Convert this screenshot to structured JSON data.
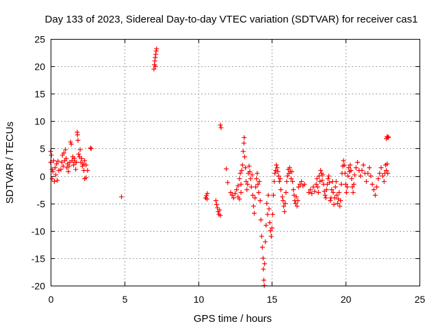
{
  "chart_data": {
    "type": "scatter",
    "title": "Day 133 of 2023, Sidereal Day-to-day VTEC variation (SDTVAR) for receiver cas1",
    "xlabel": "GPS time / hours",
    "ylabel": "SDTVAR / TECUs",
    "xlim": [
      0,
      25
    ],
    "ylim": [
      -20,
      25
    ],
    "xticks": [
      0,
      5,
      10,
      15,
      20,
      25
    ],
    "yticks": [
      -20,
      -15,
      -10,
      -5,
      0,
      5,
      10,
      15,
      20,
      25
    ],
    "xtick_labels": [
      "0",
      "5",
      "10",
      "15",
      "20",
      "25"
    ],
    "ytick_labels": [
      "-20",
      "-15",
      "-10",
      "-5",
      "0",
      "5",
      "10",
      "15",
      "20",
      "25"
    ],
    "grid": true,
    "marker": "plus",
    "series": [
      {
        "name": "SDTVAR",
        "color": "#ff0000",
        "points": [
          [
            0.0,
            4.5
          ],
          [
            0.0,
            2.5
          ],
          [
            0.05,
            3.8
          ],
          [
            0.1,
            1.2
          ],
          [
            0.1,
            -0.5
          ],
          [
            0.15,
            0.8
          ],
          [
            0.2,
            2.8
          ],
          [
            0.25,
            -1.0
          ],
          [
            0.3,
            1.5
          ],
          [
            0.35,
            0.2
          ],
          [
            0.4,
            2.2
          ],
          [
            0.45,
            -0.8
          ],
          [
            0.5,
            2.7
          ],
          [
            0.55,
            1.0
          ],
          [
            0.7,
            1.2
          ],
          [
            0.75,
            2.5
          ],
          [
            0.8,
            3.8
          ],
          [
            0.85,
            1.8
          ],
          [
            0.9,
            4.2
          ],
          [
            0.95,
            2.8
          ],
          [
            1.0,
            4.8
          ],
          [
            1.05,
            3.2
          ],
          [
            1.1,
            1.5
          ],
          [
            1.15,
            2.2
          ],
          [
            1.2,
            0.8
          ],
          [
            1.25,
            1.8
          ],
          [
            1.3,
            2.5
          ],
          [
            1.35,
            6.2
          ],
          [
            1.4,
            5.8
          ],
          [
            1.45,
            2.8
          ],
          [
            1.5,
            3.5
          ],
          [
            1.55,
            2.0
          ],
          [
            1.6,
            3.2
          ],
          [
            1.65,
            2.5
          ],
          [
            1.7,
            1.2
          ],
          [
            1.75,
            2.5
          ],
          [
            1.8,
            8.0
          ],
          [
            1.82,
            7.5
          ],
          [
            1.85,
            6.5
          ],
          [
            1.9,
            4.0
          ],
          [
            1.95,
            3.5
          ],
          [
            2.0,
            4.8
          ],
          [
            2.05,
            2.5
          ],
          [
            2.1,
            3.2
          ],
          [
            2.15,
            1.8
          ],
          [
            2.2,
            2.2
          ],
          [
            2.25,
            1.0
          ],
          [
            2.3,
            2.8
          ],
          [
            2.4,
            2.0
          ],
          [
            2.5,
            1.0
          ],
          [
            2.3,
            -0.5
          ],
          [
            2.4,
            -0.3
          ],
          [
            2.7,
            5.1
          ],
          [
            2.75,
            5.0
          ],
          [
            4.8,
            -3.8
          ],
          [
            7.0,
            19.5
          ],
          [
            7.03,
            20.3
          ],
          [
            7.06,
            21.0
          ],
          [
            7.09,
            21.6
          ],
          [
            7.12,
            22.2
          ],
          [
            7.15,
            22.8
          ],
          [
            7.18,
            23.2
          ],
          [
            7.1,
            20.0
          ],
          [
            10.5,
            -4.0
          ],
          [
            10.55,
            -3.6
          ],
          [
            10.6,
            -4.2
          ],
          [
            10.62,
            -3.2
          ],
          [
            11.2,
            -4.5
          ],
          [
            11.25,
            -5.2
          ],
          [
            11.3,
            -5.8
          ],
          [
            11.35,
            -6.5
          ],
          [
            11.4,
            -7.0
          ],
          [
            11.45,
            -6.2
          ],
          [
            11.5,
            -7.2
          ],
          [
            11.5,
            9.3
          ],
          [
            11.55,
            8.8
          ],
          [
            11.9,
            1.3
          ],
          [
            12.0,
            -1.2
          ],
          [
            12.2,
            -3.0
          ],
          [
            12.3,
            -3.5
          ],
          [
            12.4,
            -4.0
          ],
          [
            12.5,
            -3.2
          ],
          [
            12.6,
            -2.5
          ],
          [
            12.7,
            -3.8
          ],
          [
            12.8,
            -4.2
          ],
          [
            12.9,
            -3.0
          ],
          [
            12.7,
            -1.8
          ],
          [
            12.8,
            -0.5
          ],
          [
            12.85,
            0.5
          ],
          [
            12.9,
            -1.5
          ],
          [
            12.95,
            1.0
          ],
          [
            13.0,
            2.0
          ],
          [
            13.05,
            4.5
          ],
          [
            13.1,
            6.0
          ],
          [
            13.12,
            7.0
          ],
          [
            13.15,
            3.5
          ],
          [
            13.2,
            1.5
          ],
          [
            13.25,
            -1.0
          ],
          [
            13.3,
            -2.5
          ],
          [
            13.35,
            -1.5
          ],
          [
            13.4,
            0.5
          ],
          [
            13.45,
            1.8
          ],
          [
            13.5,
            0.8
          ],
          [
            13.55,
            -0.5
          ],
          [
            13.6,
            -2.0
          ],
          [
            13.65,
            0.2
          ],
          [
            13.7,
            -3.5
          ],
          [
            13.75,
            -5.5
          ],
          [
            13.8,
            -6.8
          ],
          [
            13.85,
            -4.0
          ],
          [
            13.9,
            -2.0
          ],
          [
            13.95,
            -0.5
          ],
          [
            14.0,
            0.5
          ],
          [
            14.05,
            -1.5
          ],
          [
            14.1,
            -3.0
          ],
          [
            14.15,
            -1.0
          ],
          [
            14.2,
            -4.5
          ],
          [
            14.25,
            -8.0
          ],
          [
            14.3,
            -11.0
          ],
          [
            14.35,
            -13.0
          ],
          [
            14.4,
            -15.0
          ],
          [
            14.42,
            -17.0
          ],
          [
            14.45,
            -19.0
          ],
          [
            14.48,
            -20.0
          ],
          [
            14.5,
            -16.0
          ],
          [
            14.55,
            -12.0
          ],
          [
            14.6,
            -9.0
          ],
          [
            14.65,
            -5.0
          ],
          [
            14.7,
            -7.0
          ],
          [
            14.75,
            -3.5
          ],
          [
            14.8,
            -6.0
          ],
          [
            14.85,
            -8.5
          ],
          [
            14.9,
            -10.0
          ],
          [
            14.95,
            -11.0
          ],
          [
            15.0,
            -9.5
          ],
          [
            15.05,
            -7.0
          ],
          [
            15.1,
            -3.5
          ],
          [
            15.15,
            -1.0
          ],
          [
            15.2,
            0.5
          ],
          [
            15.25,
            1.0
          ],
          [
            15.3,
            2.0
          ],
          [
            15.35,
            1.5
          ],
          [
            15.4,
            0.8
          ],
          [
            15.45,
            0.0
          ],
          [
            15.5,
            -1.0
          ],
          [
            15.55,
            -0.5
          ],
          [
            15.6,
            -2.5
          ],
          [
            15.7,
            -3.8
          ],
          [
            15.75,
            -4.5
          ],
          [
            15.8,
            -5.5
          ],
          [
            15.85,
            -6.5
          ],
          [
            15.9,
            -5.0
          ],
          [
            15.95,
            -3.0
          ],
          [
            16.0,
            -1.0
          ],
          [
            16.05,
            0.0
          ],
          [
            16.1,
            1.2
          ],
          [
            16.15,
            0.5
          ],
          [
            16.2,
            1.5
          ],
          [
            16.25,
            0.8
          ],
          [
            16.3,
            -0.5
          ],
          [
            16.35,
            0.8
          ],
          [
            16.4,
            -1.0
          ],
          [
            16.45,
            -2.5
          ],
          [
            16.5,
            -3.5
          ],
          [
            16.55,
            -4.5
          ],
          [
            16.6,
            -5.0
          ],
          [
            16.65,
            -3.8
          ],
          [
            16.7,
            -5.5
          ],
          [
            16.75,
            -4.5
          ],
          [
            16.8,
            -2.0
          ],
          [
            16.9,
            -1.5
          ],
          [
            17.0,
            -1.0
          ],
          [
            17.1,
            -1.8
          ],
          [
            17.2,
            -1.5
          ],
          [
            17.5,
            -3.0
          ],
          [
            17.6,
            -2.5
          ],
          [
            17.7,
            -3.2
          ],
          [
            17.8,
            -2.0
          ],
          [
            17.9,
            -2.8
          ],
          [
            18.0,
            -1.5
          ],
          [
            18.05,
            -0.5
          ],
          [
            18.1,
            -2.0
          ],
          [
            18.15,
            -3.0
          ],
          [
            18.2,
            0.0
          ],
          [
            18.25,
            -1.0
          ],
          [
            18.3,
            1.0
          ],
          [
            18.35,
            0.5
          ],
          [
            18.4,
            -0.8
          ],
          [
            18.45,
            0.2
          ],
          [
            18.5,
            -1.5
          ],
          [
            18.55,
            -2.8
          ],
          [
            18.6,
            -3.5
          ],
          [
            18.65,
            -4.0
          ],
          [
            18.7,
            -2.5
          ],
          [
            18.75,
            -1.5
          ],
          [
            18.8,
            -0.5
          ],
          [
            18.85,
            0.0
          ],
          [
            18.9,
            -1.2
          ],
          [
            18.95,
            -4.5
          ],
          [
            19.0,
            -4.0
          ],
          [
            19.05,
            -2.5
          ],
          [
            19.1,
            -1.0
          ],
          [
            19.15,
            -3.0
          ],
          [
            19.2,
            -5.2
          ],
          [
            19.25,
            -4.0
          ],
          [
            19.3,
            -2.0
          ],
          [
            19.35,
            -1.0
          ],
          [
            19.4,
            -3.5
          ],
          [
            19.45,
            -5.0
          ],
          [
            19.5,
            -4.2
          ],
          [
            19.55,
            -3.0
          ],
          [
            19.6,
            -5.5
          ],
          [
            19.65,
            -4.5
          ],
          [
            19.7,
            -1.5
          ],
          [
            19.75,
            0.5
          ],
          [
            19.8,
            1.8
          ],
          [
            19.85,
            2.8
          ],
          [
            19.9,
            2.0
          ],
          [
            19.95,
            0.5
          ],
          [
            20.0,
            -1.5
          ],
          [
            20.05,
            -3.0
          ],
          [
            20.1,
            -2.0
          ],
          [
            20.15,
            0.0
          ],
          [
            20.2,
            1.5
          ],
          [
            20.25,
            0.8
          ],
          [
            20.3,
            2.0
          ],
          [
            20.35,
            1.0
          ],
          [
            20.4,
            -0.5
          ],
          [
            20.45,
            -2.0
          ],
          [
            20.5,
            -3.0
          ],
          [
            20.55,
            -1.5
          ],
          [
            20.6,
            0.2
          ],
          [
            20.7,
            1.5
          ],
          [
            20.8,
            2.5
          ],
          [
            20.9,
            1.0
          ],
          [
            21.0,
            0.0
          ],
          [
            21.1,
            1.0
          ],
          [
            21.2,
            2.0
          ],
          [
            21.3,
            0.5
          ],
          [
            21.4,
            -1.0
          ],
          [
            21.5,
            0.5
          ],
          [
            21.6,
            1.5
          ],
          [
            21.7,
            0.0
          ],
          [
            21.8,
            -1.5
          ],
          [
            21.9,
            -2.5
          ],
          [
            22.0,
            -3.5
          ],
          [
            22.1,
            -2.0
          ],
          [
            22.2,
            -0.5
          ],
          [
            22.3,
            0.5
          ],
          [
            22.4,
            1.5
          ],
          [
            22.5,
            0.0
          ],
          [
            22.6,
            -1.0
          ],
          [
            22.65,
            0.5
          ],
          [
            22.7,
            2.0
          ],
          [
            22.75,
            1.0
          ],
          [
            22.8,
            2.2
          ],
          [
            22.85,
            0.5
          ],
          [
            22.75,
            6.8
          ],
          [
            22.8,
            7.2
          ],
          [
            22.85,
            7.0
          ],
          [
            22.9,
            7.1
          ]
        ]
      }
    ]
  }
}
